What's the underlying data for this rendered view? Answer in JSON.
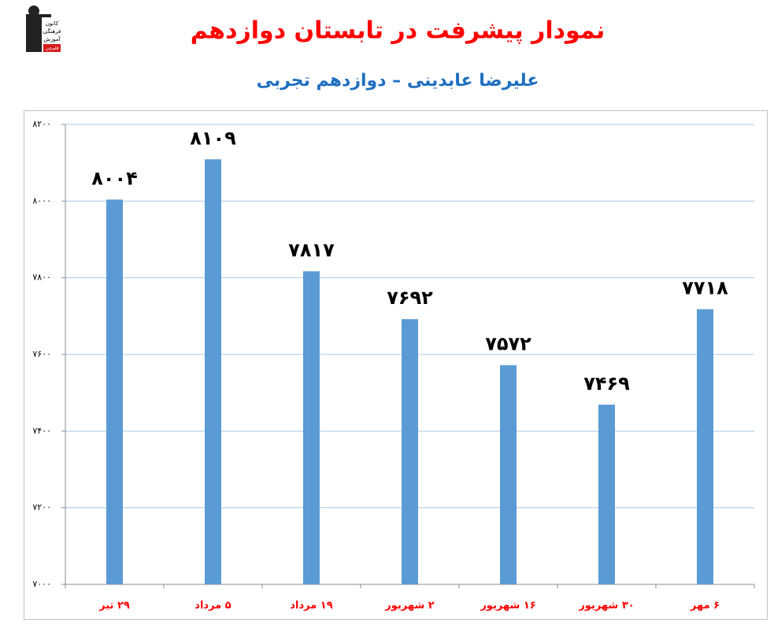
{
  "logo": {
    "lines": [
      "کانون",
      "فرهنگی",
      "آموزش",
      "قلم‌چی"
    ]
  },
  "chart_data": {
    "type": "bar",
    "title": "نمودار پیشرفت در تابستان دوازدهم",
    "subtitle": "علیرضا عابدینی – دوازدهم تجربی",
    "categories": [
      "۲۹ تیر",
      "۵ مرداد",
      "۱۹ مرداد",
      "۲ شهریور",
      "۱۶ شهریور",
      "۳۰ شهریور",
      "۶ مهر"
    ],
    "values": [
      8004,
      8109,
      7817,
      7692,
      7572,
      7469,
      7718
    ],
    "value_labels": [
      "۸۰۰۴",
      "۸۱۰۹",
      "۷۸۱۷",
      "۷۶۹۲",
      "۷۵۷۲",
      "۷۴۶۹",
      "۷۷۱۸"
    ],
    "color": "#5b9bd5",
    "ylim": [
      7000,
      8200
    ],
    "yticks": [
      {
        "value": 7000,
        "label": "۷۰۰۰"
      },
      {
        "value": 7200,
        "label": "۷۲۰۰"
      },
      {
        "value": 7400,
        "label": "۷۴۰۰"
      },
      {
        "value": 7600,
        "label": "۷۶۰۰"
      },
      {
        "value": 7800,
        "label": "۷۸۰۰"
      },
      {
        "value": 8000,
        "label": "۸۰۰۰"
      },
      {
        "value": 8200,
        "label": "۸۲۰۰"
      }
    ],
    "grid": true
  }
}
